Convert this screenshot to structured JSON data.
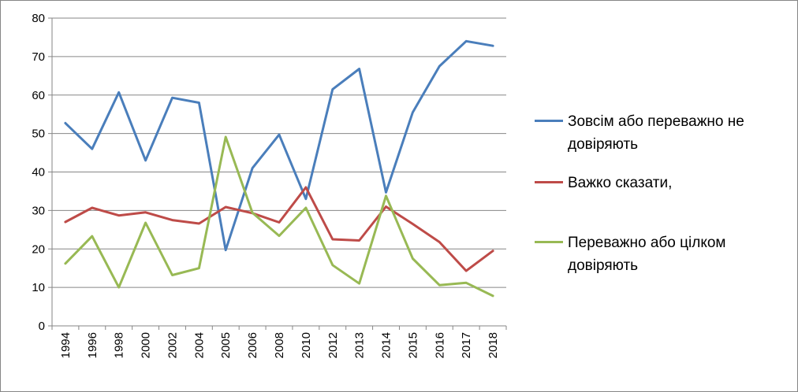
{
  "chart_data": {
    "type": "line",
    "title": "",
    "xlabel": "",
    "ylabel": "",
    "ylim": [
      0,
      80
    ],
    "yticks": [
      0,
      10,
      20,
      30,
      40,
      50,
      60,
      70,
      80
    ],
    "categories": [
      "1994",
      "1996",
      "1998",
      "2000",
      "2002",
      "2004",
      "2005",
      "2006",
      "2008",
      "2010",
      "2012",
      "2013",
      "2014",
      "2015",
      "2016",
      "2017",
      "2018"
    ],
    "grid": "horizontal",
    "legend_position": "right",
    "series": [
      {
        "name": "Зовсім або переважно не довіряють",
        "color": "#4a7ebb",
        "values": [
          52.7,
          46.0,
          60.7,
          43.0,
          59.3,
          58.0,
          19.7,
          41.0,
          49.7,
          33.0,
          61.5,
          66.8,
          34.7,
          55.5,
          67.5,
          74.0,
          72.8
        ]
      },
      {
        "name": "Важко сказати,",
        "color": "#be4b48",
        "values": [
          27.0,
          30.7,
          28.7,
          29.5,
          27.5,
          26.6,
          30.9,
          29.3,
          26.9,
          36.0,
          22.5,
          22.2,
          31.0,
          26.5,
          21.8,
          14.3,
          19.5
        ]
      },
      {
        "name": "Переважно або цілком довіряють",
        "color": "#98b954",
        "values": [
          16.2,
          23.3,
          10.0,
          26.8,
          13.2,
          15.0,
          49.1,
          29.4,
          23.4,
          30.7,
          15.8,
          11.0,
          33.8,
          17.5,
          10.6,
          11.2,
          7.8
        ]
      }
    ]
  }
}
